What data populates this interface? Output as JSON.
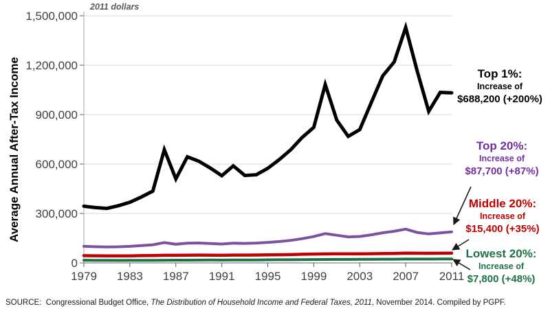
{
  "note": "2011 dollars",
  "y_axis_title": "Average Annual After-Tax Income",
  "source": {
    "prefix": "SOURCE:  Congressional Budget Office, ",
    "italic": "The Distribution of Household Income and Federal Taxes, 2011",
    "suffix": ", November 2014. Compiled by PGPF."
  },
  "annotations": [
    {
      "id": "top1",
      "title": "Top 1%:",
      "line1": "Increase of",
      "line2": "$688,200 (+200%)",
      "color": "#000000"
    },
    {
      "id": "top20",
      "title": "Top 20%:",
      "line1": "Increase of",
      "line2": "$87,700 (+87%)",
      "color": "#7030A0"
    },
    {
      "id": "middle20",
      "title": "Middle 20%:",
      "line1": "Increase of",
      "line2": "$15,400 (+35%)",
      "color": "#C00000"
    },
    {
      "id": "lowest20",
      "title": "Lowest 20%:",
      "line1": "Increase of",
      "line2": "$7,800 (+48%)",
      "color": "#1E7145"
    }
  ],
  "chart_data": {
    "type": "line",
    "title": "",
    "subtitle": "2011 dollars",
    "ylabel": "Average Annual After-Tax Income",
    "xlabel": "",
    "ylim": [
      0,
      1500000
    ],
    "grid": "horizontal",
    "legend_position": "right-annotations",
    "yticks": [
      {
        "value": 1500000,
        "label": "1,500,000"
      },
      {
        "value": 1200000,
        "label": "1,200,000"
      },
      {
        "value": 900000,
        "label": "900,000"
      },
      {
        "value": 600000,
        "label": "600,000"
      },
      {
        "value": 300000,
        "label": "300,000"
      },
      {
        "value": 0,
        "label": "0"
      }
    ],
    "xticks": [
      1979,
      1983,
      1987,
      1991,
      1995,
      1999,
      2003,
      2007,
      2011
    ],
    "x": [
      1979,
      1980,
      1981,
      1982,
      1983,
      1984,
      1985,
      1986,
      1987,
      1988,
      1989,
      1990,
      1991,
      1992,
      1993,
      1994,
      1995,
      1996,
      1997,
      1998,
      1999,
      2000,
      2001,
      2002,
      2003,
      2004,
      2005,
      2006,
      2007,
      2008,
      2009,
      2010,
      2011
    ],
    "series": [
      {
        "id": "top1",
        "name": "Top 1%",
        "color": "#000000",
        "width": 5,
        "values": [
          344100,
          336000,
          331000,
          347000,
          368000,
          400000,
          436000,
          687000,
          510000,
          644000,
          617000,
          576000,
          529000,
          589000,
          531000,
          535000,
          574000,
          627000,
          687000,
          762000,
          823000,
          1083000,
          867000,
          768000,
          809000,
          973000,
          1135000,
          1220000,
          1429000,
          1165000,
          920000,
          1035000,
          1032300
        ]
      },
      {
        "id": "top20",
        "name": "Top 20%",
        "color": "#7B52A2",
        "width": 4,
        "values": [
          100800,
          98300,
          96900,
          97800,
          100500,
          105600,
          110000,
          123500,
          113500,
          119500,
          121000,
          117500,
          114500,
          119500,
          118500,
          120500,
          124500,
          129500,
          136500,
          147000,
          160000,
          178000,
          168000,
          158000,
          160500,
          170500,
          183000,
          192000,
          205000,
          185000,
          176000,
          182000,
          188500
        ]
      },
      {
        "id": "middle20",
        "name": "Middle 20%",
        "color": "#C00000",
        "width": 4.5,
        "values": [
          44000,
          43200,
          42700,
          42400,
          43000,
          44300,
          45000,
          46300,
          46100,
          46900,
          47400,
          47100,
          46400,
          47400,
          47600,
          48100,
          48900,
          49500,
          50600,
          52400,
          53900,
          54500,
          55400,
          55000,
          55400,
          56000,
          56600,
          57500,
          59000,
          58600,
          58300,
          58600,
          59400
        ]
      },
      {
        "id": "lowest20",
        "name": "Lowest 20%",
        "color": "#1E7145",
        "width": 4,
        "values": [
          16250,
          15900,
          15500,
          15200,
          15300,
          15800,
          16000,
          16300,
          16500,
          16800,
          17200,
          17300,
          17200,
          17600,
          17800,
          18100,
          18700,
          19000,
          19300,
          20100,
          20600,
          20700,
          21300,
          21400,
          21700,
          22000,
          22300,
          22700,
          23400,
          23500,
          23500,
          23700,
          24050
        ]
      }
    ]
  }
}
